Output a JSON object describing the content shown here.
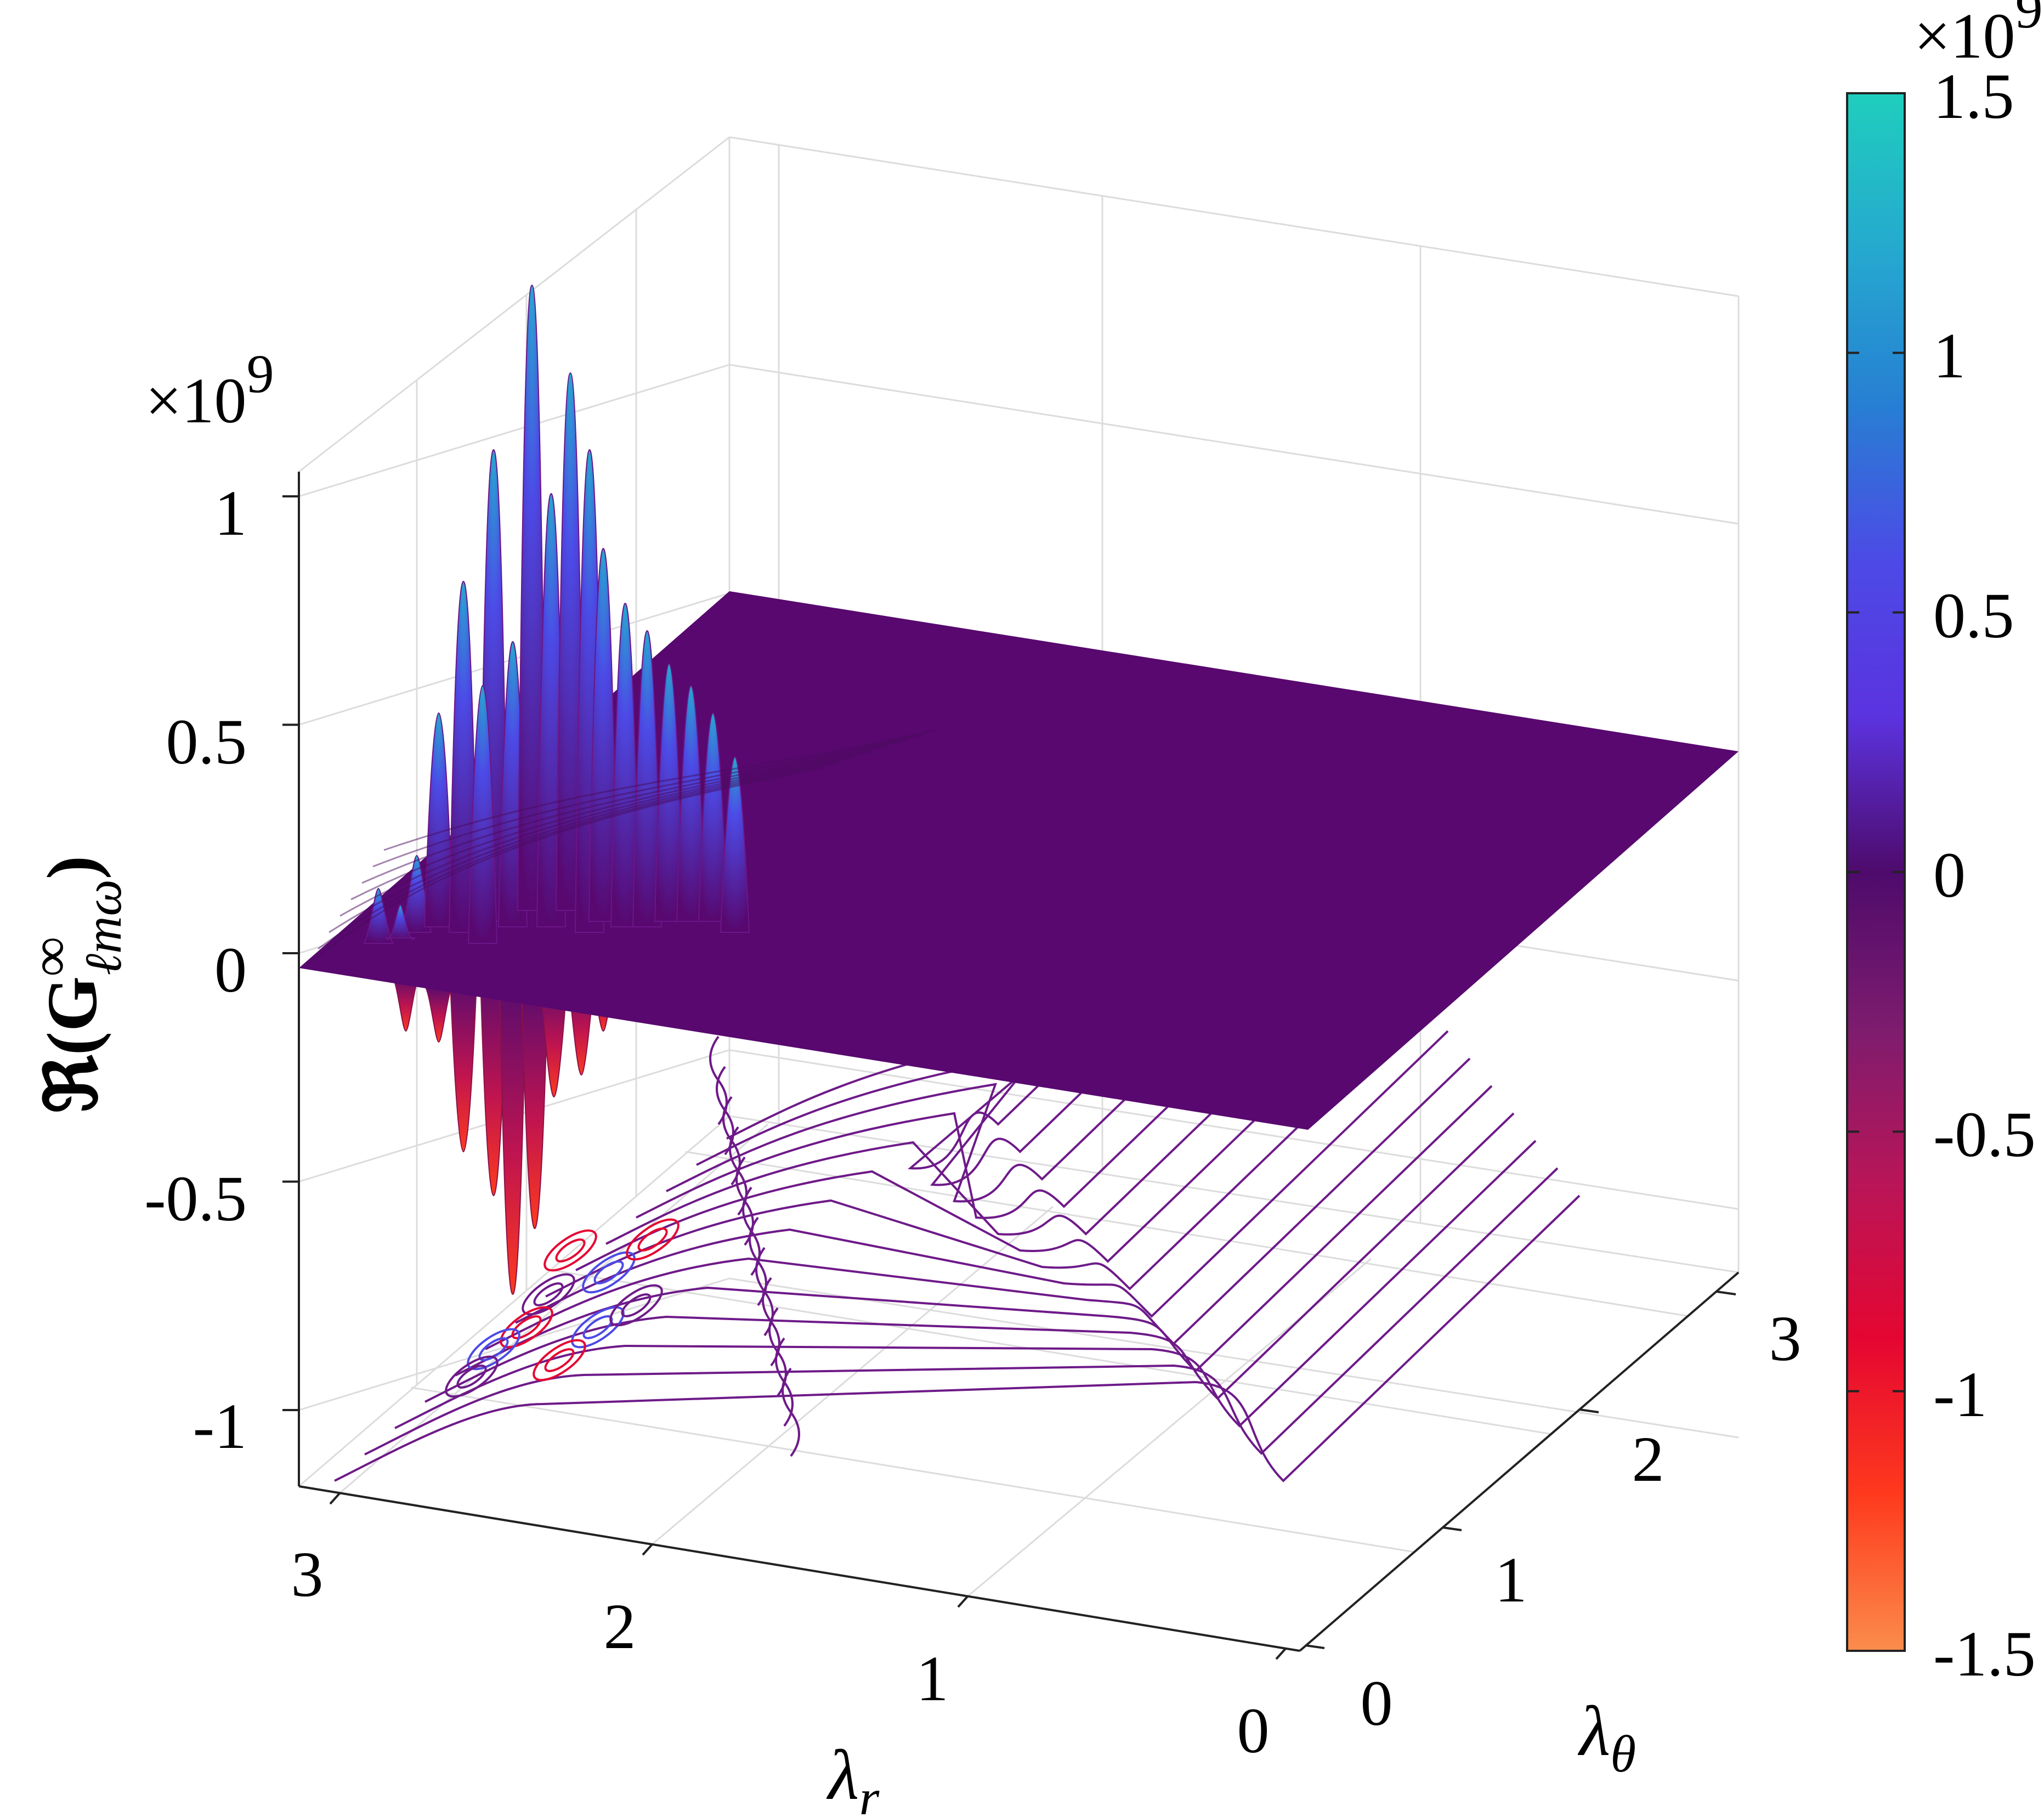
{
  "chart_data": {
    "type": "surface3d",
    "surface_color": "#58086f",
    "surface_edge_color": "#6b1687",
    "x_axis": {
      "label": "λ",
      "label_sub": "r",
      "ticks": [
        "0",
        "1",
        "2",
        "3"
      ],
      "range": [
        0,
        3
      ]
    },
    "y_axis": {
      "label": "λ",
      "label_sub": "θ",
      "ticks": [
        "0",
        "1",
        "2",
        "3"
      ],
      "range": [
        0,
        3
      ]
    },
    "z_axis": {
      "label_prefix": "ℜ(",
      "label_bold": "G",
      "label_sup": "∞",
      "label_sub": "ℓmω",
      "label_suffix": ")",
      "multiplier_base": "×10",
      "multiplier_exp": "9",
      "ticks": [
        "1",
        "0.5",
        "0",
        "-0.5",
        "-1"
      ],
      "tick_values": [
        1,
        0.5,
        0,
        -0.5,
        -1
      ]
    },
    "colorbar": {
      "multiplier_base": "×10",
      "multiplier_exp": "9",
      "ticks": [
        "1.5",
        "1",
        "0.5",
        "0",
        "-0.5",
        "-1",
        "-1.5"
      ],
      "tick_values": [
        1.5,
        1,
        0.5,
        0,
        -0.5,
        -1,
        -1.5
      ],
      "range": [
        -1.5,
        1.5
      ],
      "colors": [
        "#fb8c4c",
        "#fe3a1d",
        "#e50631",
        "#b91558",
        "#7d1c6e",
        "#4e0b6c",
        "#5b33df",
        "#4c4ae6",
        "#277fd3",
        "#25a9cf",
        "#1fcebd"
      ]
    },
    "contour_color": "#6e1a89"
  }
}
